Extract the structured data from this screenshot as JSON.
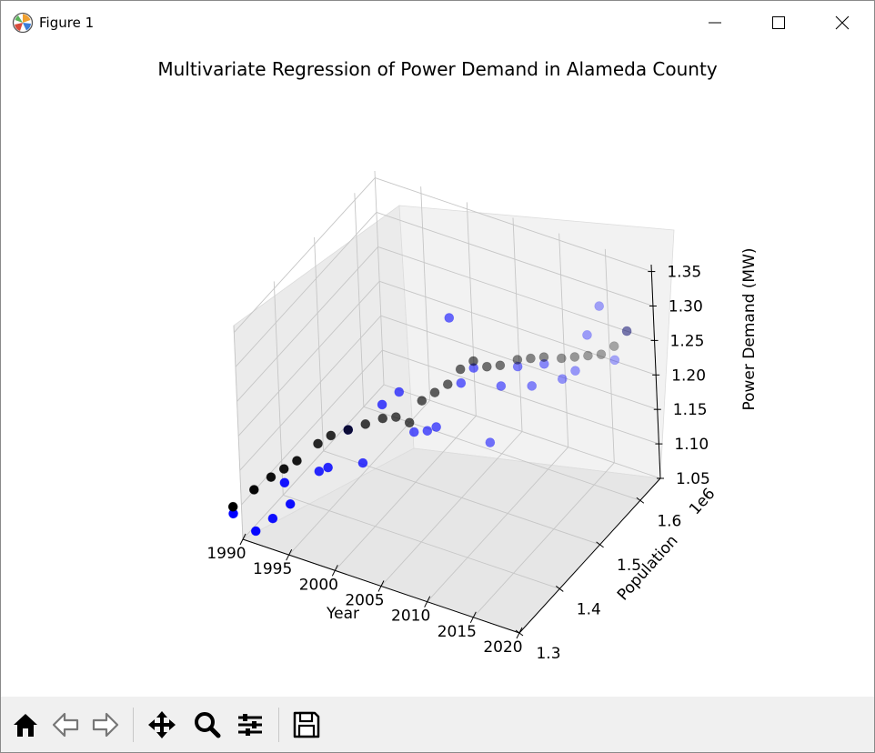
{
  "window": {
    "title": "Figure 1",
    "icons": {
      "app": "matplotlib-icon",
      "minimize": "minimize-icon",
      "maximize": "maximize-icon",
      "close": "close-icon"
    }
  },
  "toolbar": {
    "buttons": [
      {
        "name": "home-button",
        "icon": "home-icon"
      },
      {
        "name": "back-button",
        "icon": "arrow-left-icon"
      },
      {
        "name": "forward-button",
        "icon": "arrow-right-icon"
      },
      {
        "name": "pan-button",
        "icon": "move-icon"
      },
      {
        "name": "zoom-button",
        "icon": "magnifier-icon"
      },
      {
        "name": "configure-subplots-button",
        "icon": "sliders-icon"
      },
      {
        "name": "save-button",
        "icon": "floppy-disk-icon"
      }
    ]
  },
  "chart_data": {
    "type": "scatter",
    "projection": "3d",
    "title": "Multivariate Regression of Power Demand in Alameda County",
    "xlabel": "Year",
    "ylabel": "Population",
    "zlabel": "Power Demand (MW)",
    "y_offset_text": "1e6",
    "xticks": [
      "1990",
      "1995",
      "2000",
      "2005",
      "2010",
      "2015",
      "2020"
    ],
    "yticks": [
      "1.3",
      "1.4",
      "1.5",
      "1.6"
    ],
    "zticks": [
      "1.05",
      "1.10",
      "1.15",
      "1.20",
      "1.25",
      "1.30",
      "1.35"
    ],
    "xlim": [
      1990,
      2020
    ],
    "ylim": [
      1.3,
      1.65
    ],
    "zlim": [
      1.05,
      1.36
    ],
    "grid": true,
    "colors": {
      "actual": "#0000ff",
      "predicted": "#000000"
    },
    "series": [
      {
        "color": "#0000ff",
        "points": [
          [
            1990,
            1.28,
            1.1
          ],
          [
            1991,
            1.31,
            1.06
          ],
          [
            1992,
            1.33,
            1.07
          ],
          [
            1993,
            1.34,
            1.12
          ],
          [
            1994,
            1.33,
            1.1
          ],
          [
            1995,
            1.38,
            1.12
          ],
          [
            1996,
            1.38,
            1.13
          ],
          [
            1997,
            1.41,
            1.17
          ],
          [
            1998,
            1.42,
            1.12
          ],
          [
            1999,
            1.45,
            1.19
          ],
          [
            2000,
            1.47,
            1.2
          ],
          [
            2001,
            1.48,
            1.14
          ],
          [
            2002,
            1.49,
            1.14
          ],
          [
            2003,
            1.49,
            1.15
          ],
          [
            2004,
            1.51,
            1.3
          ],
          [
            2005,
            1.51,
            1.21
          ],
          [
            2006,
            1.52,
            1.23
          ],
          [
            2007,
            1.53,
            1.12
          ],
          [
            2008,
            1.54,
            1.2
          ],
          [
            2009,
            1.56,
            1.22
          ],
          [
            2010,
            1.57,
            1.19
          ],
          [
            2011,
            1.58,
            1.22
          ],
          [
            2012,
            1.6,
            1.19
          ],
          [
            2013,
            1.61,
            1.2
          ],
          [
            2014,
            1.62,
            1.25
          ],
          [
            2015,
            1.63,
            1.29
          ],
          [
            2016,
            1.64,
            1.21
          ],
          [
            2017,
            1.65,
            1.25
          ]
        ]
      },
      {
        "color": "#000000",
        "points": [
          [
            1990,
            1.28,
            1.11
          ],
          [
            1991,
            1.31,
            1.12
          ],
          [
            1992,
            1.33,
            1.13
          ],
          [
            1993,
            1.34,
            1.14
          ],
          [
            1994,
            1.35,
            1.15
          ],
          [
            1995,
            1.38,
            1.16
          ],
          [
            1996,
            1.39,
            1.17
          ],
          [
            1997,
            1.41,
            1.17
          ],
          [
            1998,
            1.43,
            1.17
          ],
          [
            1999,
            1.45,
            1.17
          ],
          [
            2000,
            1.46,
            1.17
          ],
          [
            2001,
            1.47,
            1.16
          ],
          [
            2002,
            1.48,
            1.19
          ],
          [
            2003,
            1.49,
            1.2
          ],
          [
            2004,
            1.5,
            1.21
          ],
          [
            2005,
            1.51,
            1.23
          ],
          [
            2006,
            1.52,
            1.24
          ],
          [
            2007,
            1.53,
            1.23
          ],
          [
            2008,
            1.54,
            1.23
          ],
          [
            2009,
            1.56,
            1.23
          ],
          [
            2010,
            1.57,
            1.23
          ],
          [
            2011,
            1.58,
            1.23
          ],
          [
            2012,
            1.6,
            1.22
          ],
          [
            2013,
            1.61,
            1.22
          ],
          [
            2014,
            1.62,
            1.22
          ],
          [
            2015,
            1.63,
            1.22
          ],
          [
            2016,
            1.64,
            1.23
          ],
          [
            2017,
            1.65,
            1.25
          ]
        ]
      }
    ]
  }
}
